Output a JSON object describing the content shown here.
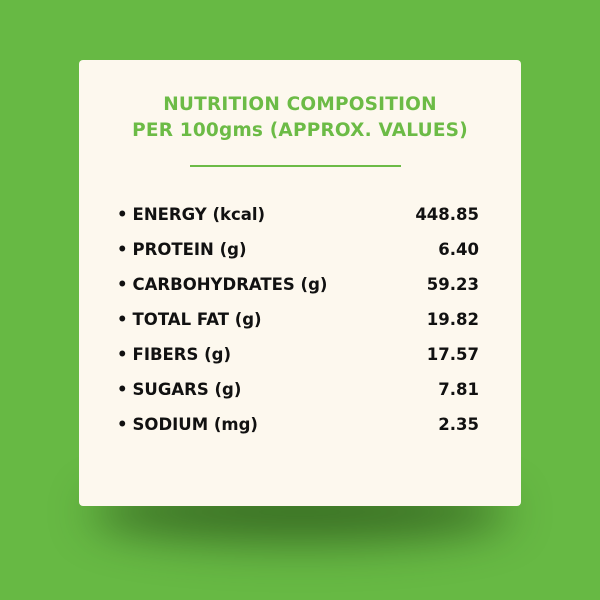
{
  "title": {
    "line1": "NUTRITION COMPOSITION",
    "line2": "PER 100gms (APPROX. VALUES)"
  },
  "nutrients": [
    {
      "label": "ENERGY (kcal)",
      "value": "448.85"
    },
    {
      "label": "PROTEIN (g)",
      "value": "6.40"
    },
    {
      "label": "CARBOHYDRATES (g)",
      "value": "59.23"
    },
    {
      "label": "TOTAL FAT (g)",
      "value": "19.82"
    },
    {
      "label": "FIBERS (g)",
      "value": "17.57"
    },
    {
      "label": "SUGARS (g)",
      "value": "7.81"
    },
    {
      "label": "SODIUM (mg)",
      "value": "2.35"
    }
  ],
  "colors": {
    "background": "#67b944",
    "card": "#fdf8ee",
    "accent": "#6cbb46",
    "text": "#111111"
  }
}
